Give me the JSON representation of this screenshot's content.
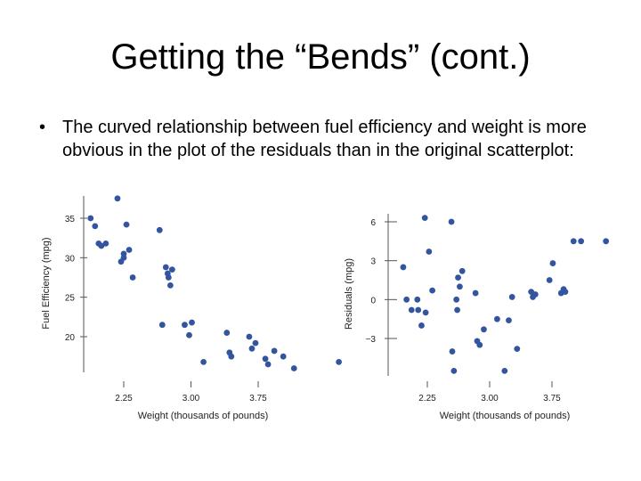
{
  "slide": {
    "title": "Getting the “Bends” (cont.)",
    "bullet_symbol": "•",
    "bullet_text": "The curved relationship between fuel efficiency and weight is more obvious in the plot of the residuals than in the original scatterplot:"
  },
  "colors": {
    "point": "#3355a0",
    "axis": "#555555"
  },
  "chart_data": [
    {
      "type": "scatter",
      "title": "",
      "xlabel": "Weight (thousands of pounds)",
      "ylabel": "Fuel Efficiency (mpg)",
      "xlim": [
        1.8,
        4.7
      ],
      "ylim": [
        15,
        37.5
      ],
      "xticks": [
        2.25,
        3.0,
        3.75
      ],
      "xtick_labels": [
        "2.25",
        "3.00",
        "3.75"
      ],
      "yticks": [
        20,
        25,
        30,
        35
      ],
      "ytick_labels": [
        "20",
        "25",
        "30",
        "35"
      ],
      "x": [
        1.88,
        1.93,
        1.97,
        2.0,
        2.05,
        2.18,
        2.22,
        2.25,
        2.25,
        2.28,
        2.31,
        2.35,
        2.65,
        2.68,
        2.72,
        2.74,
        2.75,
        2.77,
        2.79,
        2.93,
        2.98,
        3.01,
        3.14,
        3.4,
        3.43,
        3.45,
        3.65,
        3.68,
        3.72,
        3.83,
        3.86,
        3.93,
        4.03,
        4.15,
        4.65
      ],
      "y": [
        35.0,
        34.0,
        31.8,
        31.5,
        31.8,
        37.5,
        29.5,
        30.0,
        30.5,
        34.2,
        31.0,
        27.5,
        33.5,
        21.5,
        28.8,
        28.0,
        27.5,
        26.5,
        28.5,
        21.5,
        20.2,
        21.8,
        16.8,
        20.5,
        18.0,
        17.5,
        20.0,
        18.5,
        19.2,
        17.2,
        16.5,
        18.2,
        17.5,
        16.0,
        16.8
      ]
    },
    {
      "type": "scatter",
      "title": "",
      "xlabel": "Weight (thousands of pounds)",
      "ylabel": "Residuals (mpg)",
      "xlim": [
        1.8,
        4.7
      ],
      "ylim": [
        -7,
        7
      ],
      "xticks": [
        2.25,
        3.0,
        3.75
      ],
      "xtick_labels": [
        "2.25",
        "3.00",
        "3.75"
      ],
      "yticks": [
        -3,
        0,
        3,
        6
      ],
      "ytick_labels": [
        "−3",
        "0",
        "3",
        "6"
      ],
      "x": [
        1.96,
        2.0,
        2.06,
        2.13,
        2.14,
        2.18,
        2.22,
        2.23,
        2.27,
        2.31,
        2.54,
        2.55,
        2.57,
        2.6,
        2.61,
        2.62,
        2.64,
        2.67,
        2.83,
        2.85,
        2.88,
        2.93,
        3.09,
        3.18,
        3.23,
        3.27,
        3.33,
        3.5,
        3.52,
        3.55,
        3.72,
        3.76,
        3.86,
        3.89,
        3.91,
        4.01,
        4.1,
        4.4
      ],
      "y": [
        2.5,
        0.0,
        -0.8,
        0.0,
        -0.8,
        -2.0,
        6.3,
        -1.0,
        3.7,
        0.7,
        6.0,
        -4.0,
        -5.5,
        0.0,
        -0.8,
        1.7,
        1.0,
        2.2,
        0.5,
        -3.2,
        -3.5,
        -2.3,
        -1.5,
        -5.5,
        -1.6,
        0.2,
        -3.8,
        0.6,
        0.2,
        0.4,
        1.5,
        2.8,
        0.5,
        0.8,
        0.6,
        4.5,
        4.5,
        4.5
      ]
    }
  ]
}
